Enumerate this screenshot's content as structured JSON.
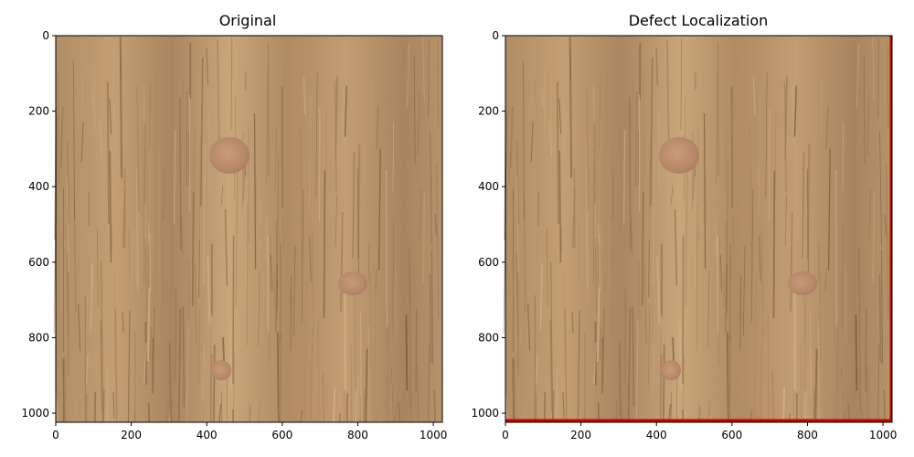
{
  "figure": {
    "panels": [
      {
        "title": "Original",
        "x_ticks": [
          "0",
          "200",
          "400",
          "600",
          "800",
          "1000"
        ],
        "y_ticks": [
          "0",
          "200",
          "400",
          "600",
          "800",
          "1000"
        ]
      },
      {
        "title": "Defect Localization",
        "x_ticks": [
          "0",
          "200",
          "400",
          "600",
          "800",
          "1000"
        ],
        "y_ticks": [
          "0",
          "200",
          "400",
          "600",
          "800",
          "1000"
        ]
      }
    ],
    "image_extent": [
      0,
      1024
    ],
    "highlight_color": "#cc0000"
  }
}
